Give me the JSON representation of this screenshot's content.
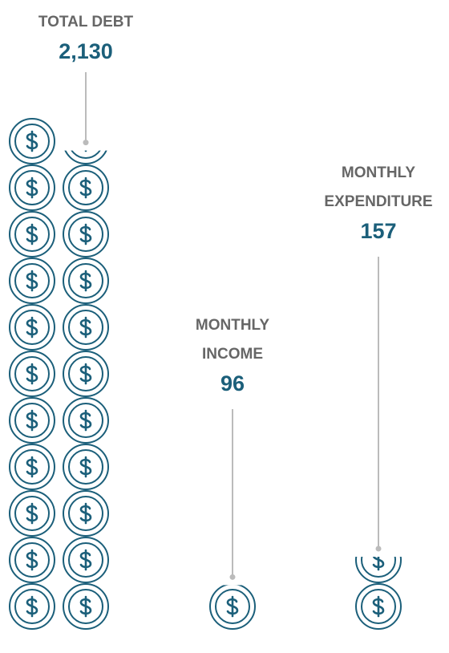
{
  "chart_data": {
    "type": "pictogram",
    "categories": [
      "TOTAL DEBT",
      "MONTHLY INCOME",
      "MONTHLY EXPENDITURE"
    ],
    "values": [
      2130,
      96,
      157
    ],
    "value_labels": [
      "2,130",
      "96",
      "157"
    ],
    "color": "#1b5f7a"
  }
}
